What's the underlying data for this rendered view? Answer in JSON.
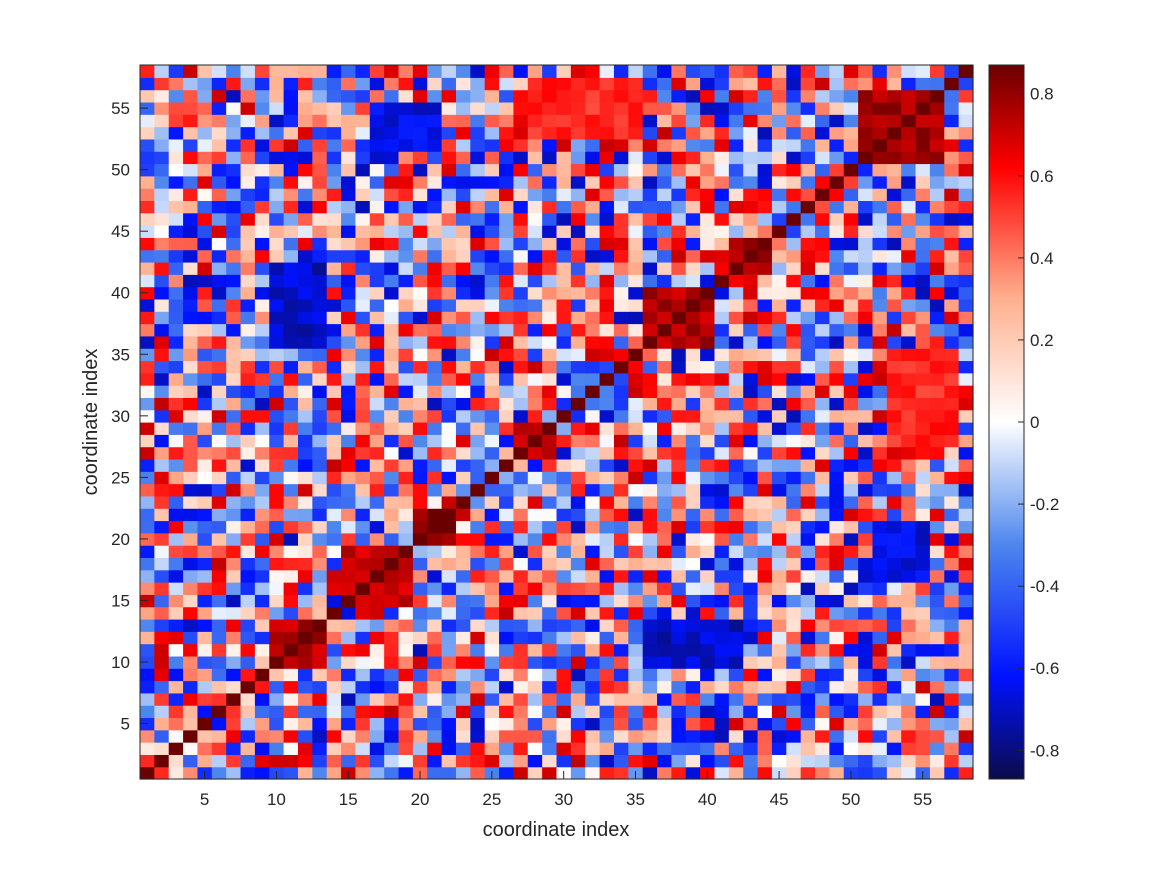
{
  "chart_data": {
    "type": "heatmap",
    "title": "",
    "xlabel": "coordinate index",
    "ylabel": "coordinate index",
    "matrix_size": 58,
    "xlim": [
      0.5,
      58.5
    ],
    "ylim": [
      0.5,
      58.5
    ],
    "x_ticks": [
      5,
      10,
      15,
      20,
      25,
      30,
      35,
      40,
      45,
      50,
      55
    ],
    "y_ticks": [
      5,
      10,
      15,
      20,
      25,
      30,
      35,
      40,
      45,
      50,
      55
    ],
    "y_direction": "normal",
    "diagonal_value": 0.87,
    "colorbar": {
      "min": -0.87,
      "max": 0.87,
      "ticks": [
        -0.8,
        -0.6,
        -0.4,
        -0.2,
        0,
        0.2,
        0.4,
        0.6,
        0.8
      ],
      "tick_labels": [
        "-0.8",
        "-0.6",
        "-0.4",
        "-0.2",
        "0",
        "0.2",
        "0.4",
        "0.6",
        "0.8"
      ],
      "colormap": "blue-white-red"
    },
    "colormap_stops": [
      {
        "v": -0.87,
        "color": "#0b0b4a"
      },
      {
        "v": -0.62,
        "color": "#0012ff"
      },
      {
        "v": -0.3,
        "color": "#4d86ee"
      },
      {
        "v": 0.0,
        "color": "#ffffff"
      },
      {
        "v": 0.3,
        "color": "#ffb08f"
      },
      {
        "v": 0.62,
        "color": "#ff0000"
      },
      {
        "v": 0.87,
        "color": "#6b0000"
      }
    ],
    "strong_blocks": [
      {
        "i": [
          10,
          13
        ],
        "j": [
          10,
          13
        ],
        "value": 0.75
      },
      {
        "i": [
          15,
          19
        ],
        "j": [
          15,
          19
        ],
        "value": 0.7
      },
      {
        "i": [
          20,
          22
        ],
        "j": [
          20,
          22
        ],
        "value": 0.8
      },
      {
        "i": [
          27,
          29
        ],
        "j": [
          27,
          29
        ],
        "value": 0.75
      },
      {
        "i": [
          36,
          40
        ],
        "j": [
          36,
          40
        ],
        "value": 0.75
      },
      {
        "i": [
          42,
          44
        ],
        "j": [
          42,
          44
        ],
        "value": 0.78
      },
      {
        "i": [
          51,
          56
        ],
        "j": [
          51,
          56
        ],
        "value": 0.78
      },
      {
        "i": [
          53,
          56
        ],
        "j": [
          27,
          29
        ],
        "value": 0.65
      },
      {
        "i": [
          10,
          13
        ],
        "j": [
          36,
          40
        ],
        "value": -0.7
      },
      {
        "i": [
          38,
          42
        ],
        "j": [
          10,
          13
        ],
        "value": -0.7
      },
      {
        "i": [
          28,
          35
        ],
        "j": [
          53,
          57
        ],
        "value": 0.55
      },
      {
        "i": [
          17,
          21
        ],
        "j": [
          52,
          55
        ],
        "value": -0.65
      }
    ]
  }
}
